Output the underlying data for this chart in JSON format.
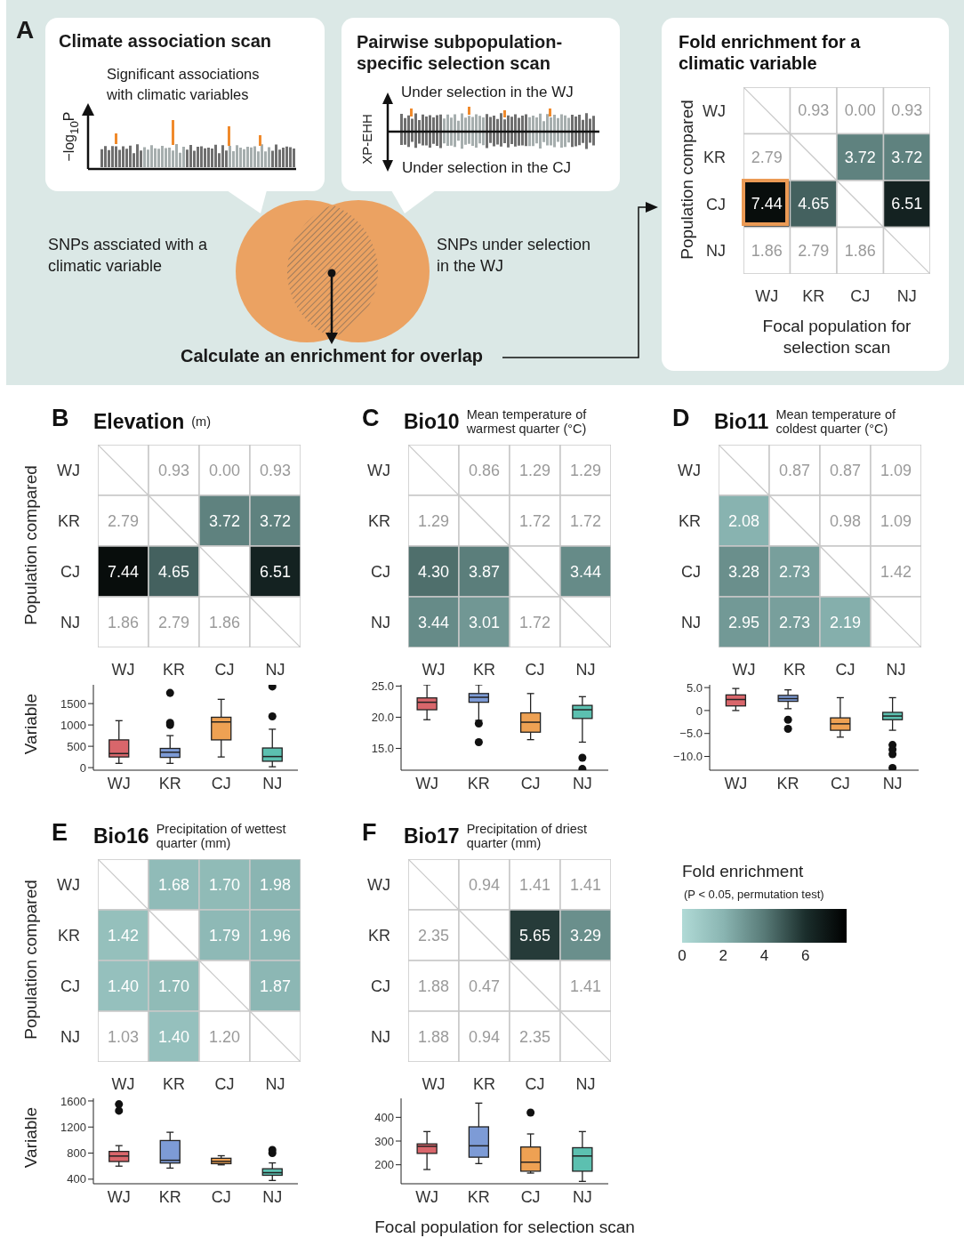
{
  "chart_data": [
    {
      "type": "other",
      "annotations": [
        "A",
        "Climate association scan",
        "Significant associations with climatic variables",
        "−log$_{10}$P",
        "Pairwise subpopulation-specific selection scan",
        "Under selection in the WJ",
        "XP-EHH",
        "Under selection in the CJ",
        "SNPs assciated with a climatic variable",
        "SNPs under selection in the WJ",
        "Calculate an enrichment for overlap"
      ]
    },
    {
      "type": "heatmap",
      "title": "Fold enrichment for a climatic variable",
      "ylabel": "Population compared",
      "xlabel": "Focal population  for selection scan",
      "categories": [
        "WJ",
        "KR",
        "CJ",
        "NJ"
      ],
      "y_categories": [
        "WJ",
        "KR",
        "CJ",
        "NJ"
      ],
      "cells": [
        [
          null,
          null,
          null,
          null
        ],
        [
          null,
          null,
          3.72,
          3.72
        ],
        [
          7.44,
          4.65,
          null,
          6.51
        ],
        [
          null,
          null,
          null,
          null
        ]
      ],
      "cell_labels": [
        [
          null,
          "0.93",
          "0.00",
          "0.93"
        ],
        [
          "2.79",
          null,
          "3.72",
          "3.72"
        ],
        [
          "7.44",
          "4.65",
          null,
          "6.51"
        ],
        [
          "1.86",
          "2.79",
          "1.86",
          null
        ]
      ]
    },
    {
      "type": "heatmap",
      "title": "Elevation",
      "subtitle": "(m)",
      "ylabel": "Population compared",
      "annotations": [
        "B"
      ],
      "categories": [
        "WJ",
        "KR",
        "CJ",
        "NJ"
      ],
      "y_categories": [
        "WJ",
        "KR",
        "CJ",
        "NJ"
      ],
      "cells": [
        [
          null,
          null,
          null,
          null
        ],
        [
          null,
          null,
          3.72,
          3.72
        ],
        [
          7.44,
          4.65,
          null,
          6.51
        ],
        [
          null,
          null,
          null,
          null
        ]
      ],
      "cell_labels": [
        [
          null,
          "0.93",
          "0.00",
          "0.93"
        ],
        [
          "2.79",
          null,
          "3.72",
          "3.72"
        ],
        [
          "7.44",
          "4.65",
          null,
          "6.51"
        ],
        [
          "1.86",
          "2.79",
          "1.86",
          null
        ]
      ]
    },
    {
      "type": "heatmap",
      "title": "Bio10",
      "subtitle": "Mean temperature of warmest quarter (°C)",
      "annotations": [
        "C"
      ],
      "categories": [
        "WJ",
        "KR",
        "CJ",
        "NJ"
      ],
      "y_categories": [
        "WJ",
        "KR",
        "CJ",
        "NJ"
      ],
      "cells": [
        [
          null,
          null,
          null,
          null
        ],
        [
          null,
          null,
          null,
          null
        ],
        [
          4.3,
          3.87,
          null,
          3.44
        ],
        [
          3.44,
          3.01,
          null,
          null
        ]
      ],
      "cell_labels": [
        [
          null,
          "0.86",
          "1.29",
          "1.29"
        ],
        [
          "1.29",
          null,
          "1.72",
          "1.72"
        ],
        [
          "4.30",
          "3.87",
          null,
          "3.44"
        ],
        [
          "3.44",
          "3.01",
          "1.72",
          null
        ]
      ]
    },
    {
      "type": "heatmap",
      "title": "Bio11",
      "subtitle": "Mean temperature of coldest quarter (°C)",
      "annotations": [
        "D"
      ],
      "categories": [
        "WJ",
        "KR",
        "CJ",
        "NJ"
      ],
      "y_categories": [
        "WJ",
        "KR",
        "CJ",
        "NJ"
      ],
      "cells": [
        [
          null,
          null,
          null,
          null
        ],
        [
          2.08,
          null,
          null,
          null
        ],
        [
          3.28,
          2.73,
          null,
          null
        ],
        [
          2.95,
          2.73,
          2.19,
          null
        ]
      ],
      "cell_labels": [
        [
          null,
          "0.87",
          "0.87",
          "1.09"
        ],
        [
          "2.08",
          null,
          "0.98",
          "1.09"
        ],
        [
          "3.28",
          "2.73",
          null,
          "1.42"
        ],
        [
          "2.95",
          "2.73",
          "2.19",
          null
        ]
      ]
    },
    {
      "type": "box",
      "ylabel": "Variable",
      "categories": [
        "WJ",
        "KR",
        "CJ",
        "NJ"
      ],
      "colors": [
        "#d9666b",
        "#7d9bd6",
        "#eea153",
        "#5cc0b0"
      ],
      "ylim": [
        -60,
        1940
      ],
      "yticks": [
        0,
        500,
        1000,
        1500
      ],
      "boxes": [
        {
          "low": 100,
          "q1": 250,
          "median": 330,
          "q3": 650,
          "high": 1100
        },
        {
          "low": 100,
          "q1": 240,
          "median": 360,
          "q3": 450,
          "high": 750,
          "outliers": [
            1000,
            1050,
            1750
          ]
        },
        {
          "low": 250,
          "q1": 650,
          "median": 1070,
          "q3": 1180,
          "high": 1600
        },
        {
          "low": 20,
          "q1": 150,
          "median": 260,
          "q3": 460,
          "high": 900,
          "outliers": [
            1200,
            1900
          ]
        }
      ]
    },
    {
      "type": "box",
      "categories": [
        "WJ",
        "KR",
        "CJ",
        "NJ"
      ],
      "colors": [
        "#d9666b",
        "#7d9bd6",
        "#eea153",
        "#5cc0b0"
      ],
      "ylim": [
        11.5,
        25.2
      ],
      "yticks": [
        {
          "value": 15,
          "label": "15.0"
        },
        {
          "value": 20,
          "label": "20.0"
        },
        {
          "value": 25,
          "label": "25.0"
        }
      ],
      "boxes": [
        {
          "low": 19.6,
          "q1": 21.2,
          "median": 22.4,
          "q3": 23.1,
          "high": 25.2
        },
        {
          "low": 19.5,
          "q1": 22.4,
          "median": 23.2,
          "q3": 23.8,
          "high": 25.2,
          "outliers": [
            16,
            19
          ]
        },
        {
          "low": 16.4,
          "q1": 17.6,
          "median": 19.2,
          "q3": 20.7,
          "high": 23.8
        },
        {
          "low": 16,
          "q1": 19.8,
          "median": 21.2,
          "q3": 21.9,
          "high": 23.3,
          "outliers": [
            13.5,
            11.7
          ]
        }
      ]
    },
    {
      "type": "box",
      "categories": [
        "WJ",
        "KR",
        "CJ",
        "NJ"
      ],
      "colors": [
        "#d9666b",
        "#7d9bd6",
        "#eea153",
        "#5cc0b0"
      ],
      "ylim": [
        -13,
        5.6
      ],
      "yticks": [
        {
          "value": -10,
          "label": "−10.0"
        },
        {
          "value": -5,
          "label": "−5.0"
        },
        0,
        {
          "value": 5,
          "label": "5.0"
        }
      ],
      "boxes": [
        {
          "low": 0,
          "q1": 1,
          "median": 2.4,
          "q3": 3.4,
          "high": 4.8
        },
        {
          "low": 0.4,
          "q1": 2,
          "median": 2.6,
          "q3": 3.3,
          "high": 4.5,
          "outliers": [
            -2,
            -4
          ]
        },
        {
          "low": -5.8,
          "q1": -4.3,
          "median": -2.9,
          "q3": -1.6,
          "high": 2.8
        },
        {
          "low": -4.3,
          "q1": -2,
          "median": -1.2,
          "q3": -0.4,
          "high": 2.8,
          "outliers": [
            -7.5,
            -8.5,
            -9.5,
            -12.5
          ]
        }
      ]
    },
    {
      "type": "heatmap",
      "title": "Bio16",
      "subtitle": "Precipitation of wettest quarter (mm)",
      "ylabel": "Population compared",
      "annotations": [
        "E"
      ],
      "categories": [
        "WJ",
        "KR",
        "CJ",
        "NJ"
      ],
      "y_categories": [
        "WJ",
        "KR",
        "CJ",
        "NJ"
      ],
      "cells": [
        [
          null,
          1.68,
          1.7,
          1.98
        ],
        [
          1.42,
          null,
          1.79,
          1.96
        ],
        [
          1.4,
          1.7,
          null,
          1.87
        ],
        [
          null,
          1.4,
          null,
          null
        ]
      ],
      "cell_labels": [
        [
          null,
          "1.68",
          "1.70",
          "1.98"
        ],
        [
          "1.42",
          null,
          "1.79",
          "1.96"
        ],
        [
          "1.40",
          "1.70",
          null,
          "1.87"
        ],
        [
          "1.03",
          "1.40",
          "1.20",
          null
        ]
      ]
    },
    {
      "type": "heatmap",
      "title": "Bio17",
      "subtitle": "Precipitation of driest quarter (mm)",
      "annotations": [
        "F",
        "(P < 0.05, permutation test)"
      ],
      "clabel": "Fold enrichment",
      "clim": [
        0,
        8
      ],
      "cticks": [
        0,
        2,
        4,
        6
      ],
      "categories": [
        "WJ",
        "KR",
        "CJ",
        "NJ"
      ],
      "y_categories": [
        "WJ",
        "KR",
        "CJ",
        "NJ"
      ],
      "cells": [
        [
          null,
          null,
          null,
          null
        ],
        [
          null,
          null,
          5.65,
          3.29
        ],
        [
          null,
          null,
          null,
          null
        ],
        [
          null,
          null,
          null,
          null
        ]
      ],
      "cell_labels": [
        [
          null,
          "0.94",
          "1.41",
          "1.41"
        ],
        [
          "2.35",
          null,
          "5.65",
          "3.29"
        ],
        [
          "1.88",
          "0.47",
          null,
          "1.41"
        ],
        [
          "1.88",
          "0.94",
          "2.35",
          null
        ]
      ]
    },
    {
      "type": "box",
      "ylabel": "Variable",
      "categories": [
        "WJ",
        "KR",
        "CJ",
        "NJ"
      ],
      "colors": [
        "#d9666b",
        "#7d9bd6",
        "#eea153",
        "#5cc0b0"
      ],
      "ylim": [
        330,
        1640
      ],
      "yticks": [
        400,
        800,
        1200,
        1600
      ],
      "boxes": [
        {
          "low": 600,
          "q1": 671,
          "median": 755,
          "q3": 826,
          "high": 915,
          "outliers": [
            1450,
            1550
          ]
        },
        {
          "low": 570,
          "q1": 648,
          "median": 690,
          "q3": 993,
          "high": 1120
        },
        {
          "low": 620,
          "q1": 638,
          "median": 673,
          "q3": 721,
          "high": 760
        },
        {
          "low": 380,
          "q1": 460,
          "median": 500,
          "q3": 560,
          "high": 650,
          "outliers": [
            800,
            850
          ]
        }
      ]
    },
    {
      "type": "box",
      "xlabel": "Focal population  for selection scan",
      "categories": [
        "WJ",
        "KR",
        "CJ",
        "NJ"
      ],
      "colors": [
        "#d9666b",
        "#7d9bd6",
        "#eea153",
        "#5cc0b0"
      ],
      "ylim": [
        120,
        480
      ],
      "yticks": [
        200,
        300,
        400
      ],
      "boxes": [
        {
          "low": 180,
          "q1": 248,
          "median": 278,
          "q3": 288,
          "high": 340
        },
        {
          "low": 205,
          "q1": 232,
          "median": 280,
          "q3": 360,
          "high": 460
        },
        {
          "low": 165,
          "q1": 173,
          "median": 211,
          "q3": 275,
          "high": 330,
          "outliers": [
            420
          ]
        },
        {
          "low": 130,
          "q1": 173,
          "median": 237,
          "q3": 272,
          "high": 340
        }
      ]
    }
  ]
}
